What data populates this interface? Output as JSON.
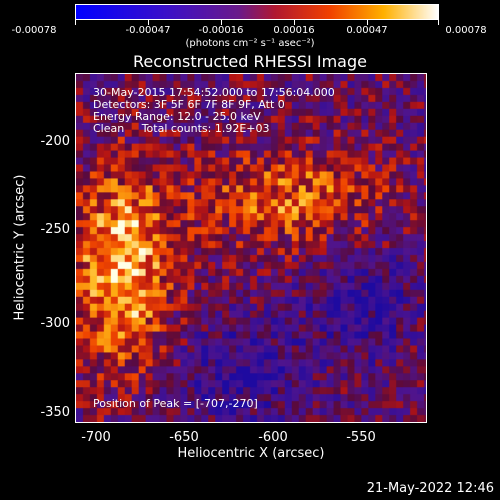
{
  "colorbar": {
    "tick_labels": [
      "-0.00078",
      "-0.00047",
      "-0.00016",
      "0.00016",
      "0.00047",
      "0.00078"
    ],
    "units": "(photons cm⁻² s⁻¹ asec⁻²)"
  },
  "title": "Reconstructed RHESSI Image",
  "info": {
    "time": "30-May-2015 17:54:52.000 to 17:56:04.000",
    "detectors": "Detectors: 3F 5F 6F 7F 8F 9F, Att 0",
    "energy": "Energy Range: 12.0 - 25.0 keV",
    "clean": "Clean     Total counts: 1.92E+03",
    "peak": "Position of Peak = [-707,-270]"
  },
  "axes": {
    "xlabel": "Heliocentric X (arcsec)",
    "ylabel": "Heliocentric Y (arcsec)",
    "xticks": [
      "-700",
      "-650",
      "-600",
      "-550"
    ],
    "yticks": [
      "-200",
      "-250",
      "-300",
      "-350"
    ]
  },
  "footer_date": "21-May-2022 12:46",
  "colors": {
    "background": "#000000",
    "colormap": "blue-purple-red-yellow-white"
  }
}
